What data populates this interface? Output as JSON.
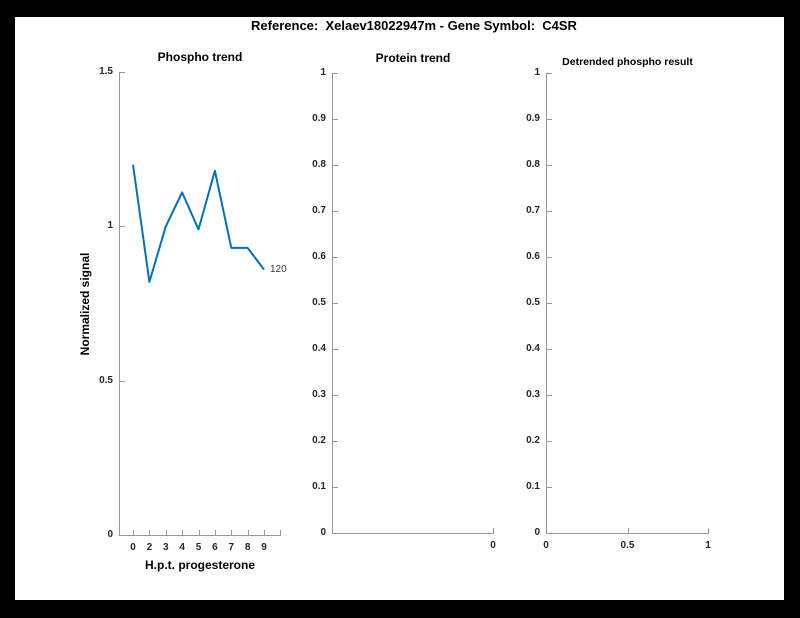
{
  "figure_title": "Reference:  Xelaev18022947m - Gene Symbol:  C4SR",
  "colors": {
    "background": "#000000",
    "panel": "#ffffff",
    "line": "#0072BD",
    "axis": "#979797",
    "tick_text": "#262626"
  },
  "chart_data": [
    {
      "type": "line",
      "title": "Phospho trend",
      "xlabel": "H.p.t. progesterone",
      "ylabel": "Normalized signal",
      "categories": [
        "0",
        "2",
        "3",
        "4",
        "5",
        "6",
        "7",
        "8",
        "9"
      ],
      "values": [
        1.2,
        0.82,
        1.0,
        1.11,
        0.99,
        1.18,
        0.93,
        0.93,
        0.86
      ],
      "ylim": [
        0,
        1.5
      ],
      "yticks": [
        0,
        0.5,
        1,
        1.5
      ],
      "ytick_labels": [
        "0",
        "0.5",
        "1",
        "1.5"
      ],
      "end_annotation": "120",
      "line_color": "#0072BD",
      "grid": false,
      "legend": "none"
    },
    {
      "type": "line",
      "title": "Protein trend",
      "xlabel": "",
      "ylabel": "",
      "categories": [],
      "values": [],
      "ylim": [
        0,
        1
      ],
      "yticks": [
        0,
        0.1,
        0.2,
        0.3,
        0.4,
        0.5,
        0.6,
        0.7,
        0.8,
        0.9,
        1
      ],
      "ytick_labels": [
        "0",
        "0.1",
        "0.2",
        "0.3",
        "0.4",
        "0.5",
        "0.6",
        "0.7",
        "0.8",
        "0.9",
        "1"
      ],
      "xticks": [
        {
          "label": "0",
          "frac": 1
        }
      ],
      "grid": false,
      "legend": "none"
    },
    {
      "type": "line",
      "title": "Detrended phospho result",
      "xlabel": "",
      "ylabel": "",
      "categories": [],
      "values": [],
      "ylim": [
        0,
        1
      ],
      "xlim": [
        0,
        1
      ],
      "yticks": [
        0,
        0.1,
        0.2,
        0.3,
        0.4,
        0.5,
        0.6,
        0.7,
        0.8,
        0.9,
        1
      ],
      "ytick_labels": [
        "0",
        "0.1",
        "0.2",
        "0.3",
        "0.4",
        "0.5",
        "0.6",
        "0.7",
        "0.8",
        "0.9",
        "1"
      ],
      "xticks": [
        {
          "label": "0",
          "frac": 0
        },
        {
          "label": "0.5",
          "frac": 0.5
        },
        {
          "label": "1",
          "frac": 1
        }
      ],
      "grid": false,
      "legend": "none"
    }
  ]
}
